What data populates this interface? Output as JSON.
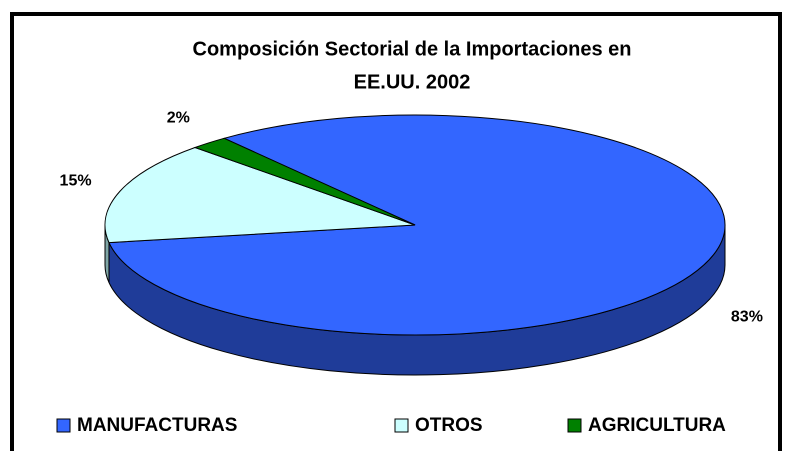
{
  "chart_data": {
    "type": "pie",
    "title": [
      "Composición Sectorial de la Importaciones en",
      "EE.UU. 2002"
    ],
    "categories": [
      "MANUFACTURAS",
      "OTROS",
      "AGRICULTURA"
    ],
    "values": [
      83,
      15,
      2
    ],
    "value_labels": [
      "83%",
      "15%",
      "2%"
    ],
    "colors": [
      "#3366ff",
      "#ccffff",
      "#008000"
    ],
    "side_colors": [
      "#1f3c99",
      "#7fa6a6",
      "#004d00"
    ],
    "legend": "bottom"
  }
}
